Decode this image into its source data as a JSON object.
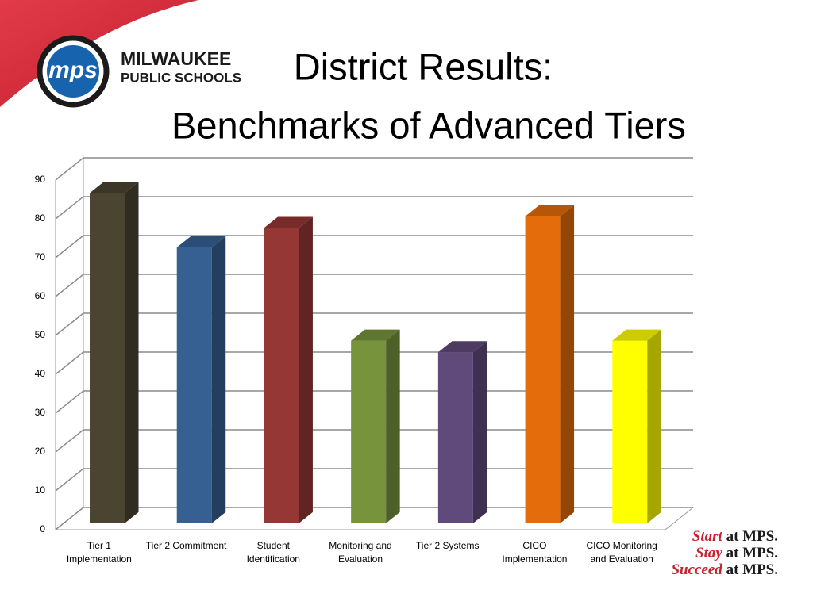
{
  "logo": {
    "mark": "mps",
    "name_lines": [
      "MILWAUKEE",
      "PUBLIC SCHOOLS"
    ]
  },
  "tagline": [
    {
      "word": "Start",
      "rest": "at MPS."
    },
    {
      "word": "Stay",
      "rest": "at MPS."
    },
    {
      "word": "Succeed",
      "rest": "at MPS."
    }
  ],
  "chart_data": {
    "type": "bar3d",
    "title": "District Results:",
    "subtitle": "Benchmarks of Advanced Tiers",
    "categories": [
      "Tier 1 Implementation",
      "Tier 2 Commitment",
      "Student Identification",
      "Monitoring and Evaluation",
      "Tier 2 Systems",
      "CICO Implementation",
      "CICO Monitoring and Evaluation"
    ],
    "values": [
      85,
      71,
      76,
      47,
      44,
      79,
      47
    ],
    "colors": [
      "#4a4430",
      "#376092",
      "#953735",
      "#77933c",
      "#604a7b",
      "#e46c0a",
      "#ffff00"
    ],
    "ylim": [
      0,
      90
    ],
    "yticks": [
      0,
      10,
      20,
      30,
      40,
      50,
      60,
      70,
      80,
      90
    ],
    "grid": true
  }
}
